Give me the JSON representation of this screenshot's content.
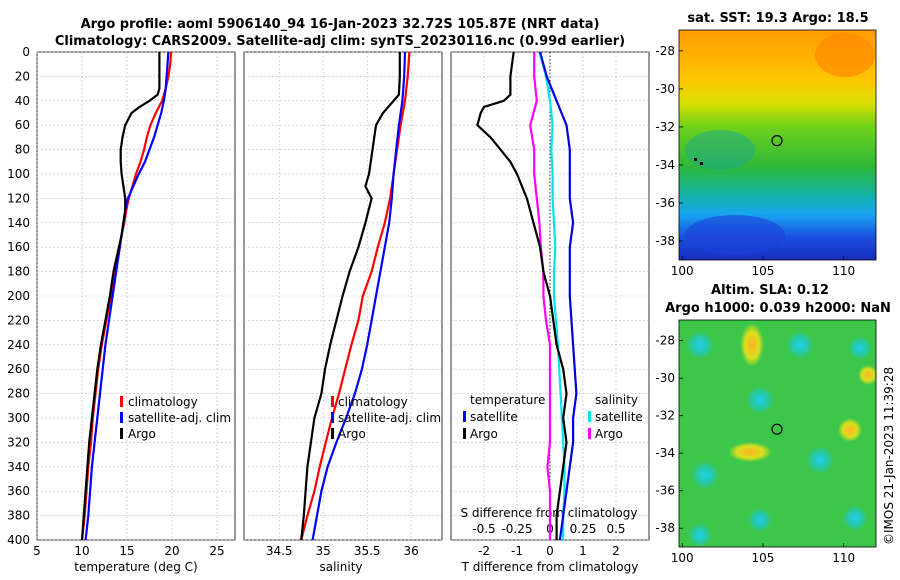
{
  "titles": {
    "line1": "Argo profile: aoml 5906140_94 16-Jan-2023 32.72S 105.87E (NRT data)",
    "line2": "Climatology: CARS2009. Satellite-adj clim: synTS_20230116.nc (0.99d earlier)",
    "sst_title": "sat. SST: 19.3 Argo: 18.5",
    "sla_title1": "Altim. SLA: 0.12",
    "sla_title2": "Argo h1000: 0.039 h2000: NaN",
    "footer": "©IMOS 21-Jan-2023 11:39:28"
  },
  "colors": {
    "climatology": "#ff0000",
    "satellite": "#0000ff",
    "argo": "#000000",
    "sal_diff": "#ff00ff",
    "sal_sat": "#00e5ee",
    "tdiff_sat": "#0000dd"
  },
  "chart_data": [
    {
      "type": "line",
      "name": "temperature",
      "xlabel": "temperature (deg C)",
      "ylabel": "",
      "xlim": [
        5,
        27
      ],
      "ylim": [
        400,
        0
      ],
      "xticks": [
        "5",
        "10",
        "15",
        "20",
        "25"
      ],
      "yticks": [
        "0",
        "20",
        "40",
        "60",
        "80",
        "100",
        "120",
        "140",
        "160",
        "180",
        "200",
        "220",
        "240",
        "260",
        "280",
        "300",
        "320",
        "340",
        "360",
        "380",
        "400"
      ],
      "grid": true,
      "legend": [
        "climatology",
        "satellite-adj. clim",
        "Argo"
      ],
      "legend_position": "lower-right",
      "series": [
        {
          "name": "climatology",
          "depth": [
            0,
            10,
            20,
            30,
            40,
            50,
            60,
            70,
            80,
            90,
            100,
            110,
            120,
            130,
            140,
            150,
            160,
            180,
            200,
            220,
            240,
            260,
            280,
            300,
            320,
            340,
            360,
            380,
            400
          ],
          "values": [
            19.9,
            19.8,
            19.6,
            19.3,
            18.9,
            18.2,
            17.6,
            17.2,
            16.9,
            16.5,
            16.0,
            15.6,
            15.2,
            14.9,
            14.7,
            14.4,
            14.2,
            13.7,
            13.2,
            12.7,
            12.2,
            11.8,
            11.5,
            11.2,
            11.0,
            10.7,
            10.5,
            10.3,
            10.0
          ]
        },
        {
          "name": "satellite-adj. clim",
          "depth": [
            0,
            10,
            20,
            30,
            40,
            50,
            60,
            70,
            80,
            90,
            100,
            110,
            120,
            130,
            140,
            150,
            160,
            180,
            200,
            220,
            240,
            260,
            280,
            300,
            320,
            340,
            360,
            380,
            400
          ],
          "values": [
            19.6,
            19.5,
            19.4,
            19.3,
            19.1,
            18.8,
            18.4,
            18.0,
            17.5,
            17.0,
            16.3,
            15.7,
            15.1,
            14.8,
            14.6,
            14.4,
            14.2,
            13.8,
            13.4,
            13.0,
            12.6,
            12.3,
            12.0,
            11.7,
            11.4,
            11.1,
            10.9,
            10.7,
            10.4
          ]
        },
        {
          "name": "Argo",
          "depth": [
            0,
            10,
            20,
            30,
            35,
            40,
            45,
            50,
            60,
            70,
            80,
            90,
            100,
            110,
            120,
            130,
            140,
            150,
            160,
            180,
            200,
            220,
            240,
            260,
            280,
            300,
            320,
            340,
            360,
            380,
            400
          ],
          "values": [
            18.6,
            18.6,
            18.6,
            18.6,
            18.4,
            17.5,
            16.4,
            15.5,
            14.8,
            14.5,
            14.3,
            14.3,
            14.4,
            14.6,
            14.8,
            14.8,
            14.6,
            14.4,
            14.1,
            13.5,
            13.1,
            12.6,
            12.1,
            11.7,
            11.4,
            11.1,
            10.8,
            10.6,
            10.4,
            10.2,
            10.0
          ]
        }
      ]
    },
    {
      "type": "line",
      "name": "salinity",
      "xlabel": "salinity",
      "xlim": [
        34.1,
        36.35
      ],
      "ylim": [
        400,
        0
      ],
      "xticks": [
        "34.5",
        "35",
        "35.5",
        "36"
      ],
      "grid": true,
      "legend": [
        "climatology",
        "satellite-adj. clim",
        "Argo"
      ],
      "legend_position": "lower-right",
      "series": [
        {
          "name": "climatology",
          "depth": [
            0,
            20,
            40,
            60,
            80,
            100,
            120,
            140,
            160,
            180,
            200,
            220,
            240,
            260,
            280,
            300,
            320,
            340,
            360,
            380,
            400
          ],
          "values": [
            35.98,
            35.96,
            35.93,
            35.88,
            35.84,
            35.8,
            35.76,
            35.7,
            35.62,
            35.55,
            35.45,
            35.4,
            35.32,
            35.25,
            35.18,
            35.1,
            35.03,
            34.96,
            34.9,
            34.82,
            34.75
          ]
        },
        {
          "name": "satellite-adj. clim",
          "depth": [
            0,
            20,
            40,
            60,
            80,
            100,
            120,
            140,
            160,
            180,
            200,
            220,
            240,
            260,
            280,
            300,
            320,
            340,
            360,
            380,
            400
          ],
          "values": [
            35.93,
            35.92,
            35.9,
            35.86,
            35.83,
            35.8,
            35.78,
            35.75,
            35.7,
            35.65,
            35.6,
            35.55,
            35.5,
            35.44,
            35.36,
            35.26,
            35.15,
            35.05,
            34.98,
            34.93,
            34.88
          ]
        },
        {
          "name": "Argo",
          "depth": [
            0,
            20,
            35,
            40,
            50,
            60,
            80,
            100,
            110,
            120,
            140,
            160,
            180,
            200,
            220,
            240,
            260,
            280,
            300,
            320,
            340,
            360,
            380,
            400
          ],
          "values": [
            35.87,
            35.87,
            35.86,
            35.8,
            35.68,
            35.6,
            35.56,
            35.52,
            35.48,
            35.55,
            35.48,
            35.4,
            35.3,
            35.22,
            35.15,
            35.08,
            35.02,
            34.98,
            34.9,
            34.86,
            34.82,
            34.8,
            34.78,
            34.75
          ]
        }
      ]
    },
    {
      "type": "line",
      "name": "difference",
      "xlabel": "T difference from climatology",
      "xlabel2": "S difference from climatology",
      "xlim": [
        -3.0,
        3.0
      ],
      "ylim": [
        400,
        0
      ],
      "xticks": [
        "-2",
        "-1",
        "0",
        "1",
        "2"
      ],
      "xticks2": [
        "-0.5",
        "-0.25",
        "0",
        "0.25",
        "0.5"
      ],
      "grid": true,
      "legend_temperature": {
        "heading": "temperature",
        "items": [
          "satellite",
          "Argo"
        ]
      },
      "legend_salinity": {
        "heading": "salinity",
        "items": [
          "satellite",
          "Argo"
        ]
      },
      "series": [
        {
          "name": "T satellite",
          "depth": [
            0,
            20,
            40,
            60,
            80,
            100,
            120,
            140,
            160,
            180,
            200,
            240,
            280,
            300,
            320,
            340,
            360,
            380,
            400
          ],
          "values": [
            -0.3,
            -0.1,
            0.2,
            0.5,
            0.6,
            0.6,
            0.6,
            0.7,
            0.6,
            0.6,
            0.6,
            0.7,
            0.8,
            0.7,
            0.7,
            0.6,
            0.5,
            0.4,
            0.3
          ]
        },
        {
          "name": "T Argo",
          "depth": [
            0,
            20,
            35,
            40,
            45,
            50,
            60,
            70,
            80,
            90,
            100,
            120,
            140,
            160,
            180,
            200,
            240,
            260,
            280,
            300,
            320,
            340,
            360,
            380,
            400
          ],
          "values": [
            -1.1,
            -1.2,
            -1.2,
            -1.4,
            -2.0,
            -2.1,
            -2.2,
            -1.8,
            -1.5,
            -1.2,
            -1.0,
            -0.7,
            -0.5,
            -0.3,
            -0.2,
            0.0,
            0.2,
            0.4,
            0.5,
            0.4,
            0.5,
            0.4,
            0.3,
            0.2,
            0.2
          ]
        },
        {
          "name": "S satellite",
          "depth": [
            0,
            20,
            40,
            60,
            80,
            100,
            120,
            140,
            160,
            180,
            200,
            240,
            280,
            300,
            320,
            340,
            360,
            380,
            400
          ],
          "values": [
            -0.08,
            -0.03,
            0.0,
            0.02,
            0.01,
            0.02,
            0.02,
            0.03,
            0.04,
            0.03,
            0.03,
            0.06,
            0.08,
            0.09,
            0.1,
            0.11,
            0.11,
            0.1,
            0.1
          ]
        },
        {
          "name": "S Argo",
          "depth": [
            0,
            20,
            40,
            60,
            80,
            100,
            120,
            140,
            160,
            180,
            200,
            220,
            240,
            260,
            280,
            300,
            320,
            340,
            360,
            380,
            400
          ],
          "values": [
            -0.12,
            -0.12,
            -0.1,
            -0.15,
            -0.12,
            -0.12,
            -0.1,
            -0.08,
            -0.07,
            -0.05,
            -0.05,
            -0.03,
            0.0,
            0.0,
            0.0,
            0.0,
            0.0,
            -0.02,
            0.0,
            0.0,
            0.0
          ]
        }
      ]
    },
    {
      "type": "heatmap",
      "name": "sst_map",
      "title": "sat. SST: 19.3 Argo: 18.5",
      "xlim": [
        99.8,
        112.0
      ],
      "ylim": [
        -39.0,
        -26.9
      ],
      "xticks": [
        "100",
        "105",
        "110"
      ],
      "yticks": [
        "-28",
        "-30",
        "-32",
        "-34",
        "-36",
        "-38"
      ],
      "marker": {
        "lon": 105.87,
        "lat": -32.72
      }
    },
    {
      "type": "heatmap",
      "name": "sla_map",
      "title": "Altim. SLA: 0.12",
      "xlim": [
        99.8,
        112.0
      ],
      "ylim": [
        -39.0,
        -26.9
      ],
      "xticks": [
        "100",
        "105",
        "110"
      ],
      "yticks": [
        "-28",
        "-30",
        "-32",
        "-34",
        "-36",
        "-38"
      ],
      "marker": {
        "lon": 105.87,
        "lat": -32.72
      }
    }
  ]
}
